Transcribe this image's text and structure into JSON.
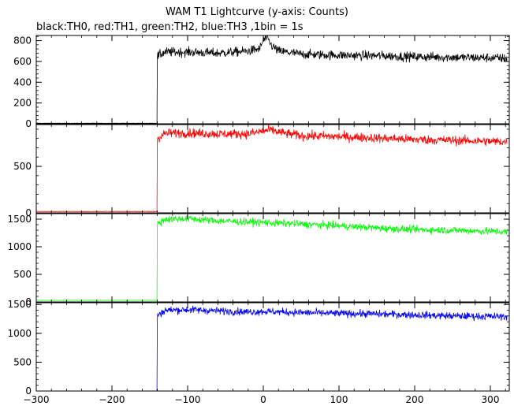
{
  "chart_data": {
    "type": "line",
    "title": "WAM T1 Lightcurve (y-axis: Counts)",
    "subtitle": "black:TH0, red:TH1, green:TH2, blue:TH3 ,1bin = 1s",
    "ylabel": "Counts",
    "xlim": [
      -300,
      325
    ],
    "x_ticks": [
      -300,
      -200,
      -100,
      0,
      100,
      200,
      300
    ],
    "x_tick_labels": [
      "−300",
      "−200",
      "−100",
      "0",
      "100",
      "200",
      "300"
    ],
    "grid": false,
    "panels": [
      {
        "name": "TH0",
        "color": "#000000",
        "ylim": [
          0,
          850
        ],
        "y_ticks": [
          0,
          200,
          400,
          600,
          800
        ],
        "pre_level": 5,
        "onset_x": -140,
        "points": [
          [
            -140,
            650
          ],
          [
            -130,
            690
          ],
          [
            -100,
            690
          ],
          [
            -60,
            680
          ],
          [
            -20,
            700
          ],
          [
            -5,
            720
          ],
          [
            0,
            800
          ],
          [
            5,
            830
          ],
          [
            10,
            760
          ],
          [
            20,
            700
          ],
          [
            50,
            670
          ],
          [
            100,
            660
          ],
          [
            150,
            655
          ],
          [
            200,
            645
          ],
          [
            250,
            640
          ],
          [
            300,
            635
          ],
          [
            320,
            630
          ]
        ]
      },
      {
        "name": "TH1",
        "color": "#ff0000",
        "ylim": [
          0,
          950
        ],
        "y_ticks": [
          0,
          500
        ],
        "pre_level": 15,
        "onset_x": -140,
        "points": [
          [
            -140,
            800
          ],
          [
            -130,
            855
          ],
          [
            -100,
            860
          ],
          [
            -60,
            850
          ],
          [
            -20,
            850
          ],
          [
            0,
            880
          ],
          [
            10,
            890
          ],
          [
            25,
            860
          ],
          [
            50,
            830
          ],
          [
            100,
            820
          ],
          [
            150,
            805
          ],
          [
            200,
            790
          ],
          [
            250,
            780
          ],
          [
            300,
            770
          ],
          [
            320,
            765
          ]
        ]
      },
      {
        "name": "TH2",
        "color": "#00ff00",
        "ylim": [
          0,
          1600
        ],
        "y_ticks": [
          0,
          500,
          1000,
          1500
        ],
        "pre_level": 30,
        "onset_x": -140,
        "points": [
          [
            -140,
            1400
          ],
          [
            -130,
            1500
          ],
          [
            -100,
            1510
          ],
          [
            -60,
            1470
          ],
          [
            -20,
            1450
          ],
          [
            0,
            1440
          ],
          [
            50,
            1410
          ],
          [
            100,
            1380
          ],
          [
            150,
            1340
          ],
          [
            200,
            1310
          ],
          [
            250,
            1300
          ],
          [
            300,
            1280
          ],
          [
            320,
            1270
          ]
        ]
      },
      {
        "name": "TH3",
        "color": "#0000ff",
        "ylim": [
          0,
          1530
        ],
        "y_ticks": [
          0,
          500,
          1000,
          1500
        ],
        "pre_level": 0,
        "onset_x": -140,
        "points": [
          [
            -140,
            1300
          ],
          [
            -130,
            1400
          ],
          [
            -100,
            1410
          ],
          [
            -60,
            1390
          ],
          [
            -20,
            1370
          ],
          [
            0,
            1380
          ],
          [
            50,
            1360
          ],
          [
            100,
            1345
          ],
          [
            150,
            1335
          ],
          [
            200,
            1320
          ],
          [
            250,
            1300
          ],
          [
            300,
            1295
          ],
          [
            320,
            1290
          ]
        ]
      }
    ]
  }
}
